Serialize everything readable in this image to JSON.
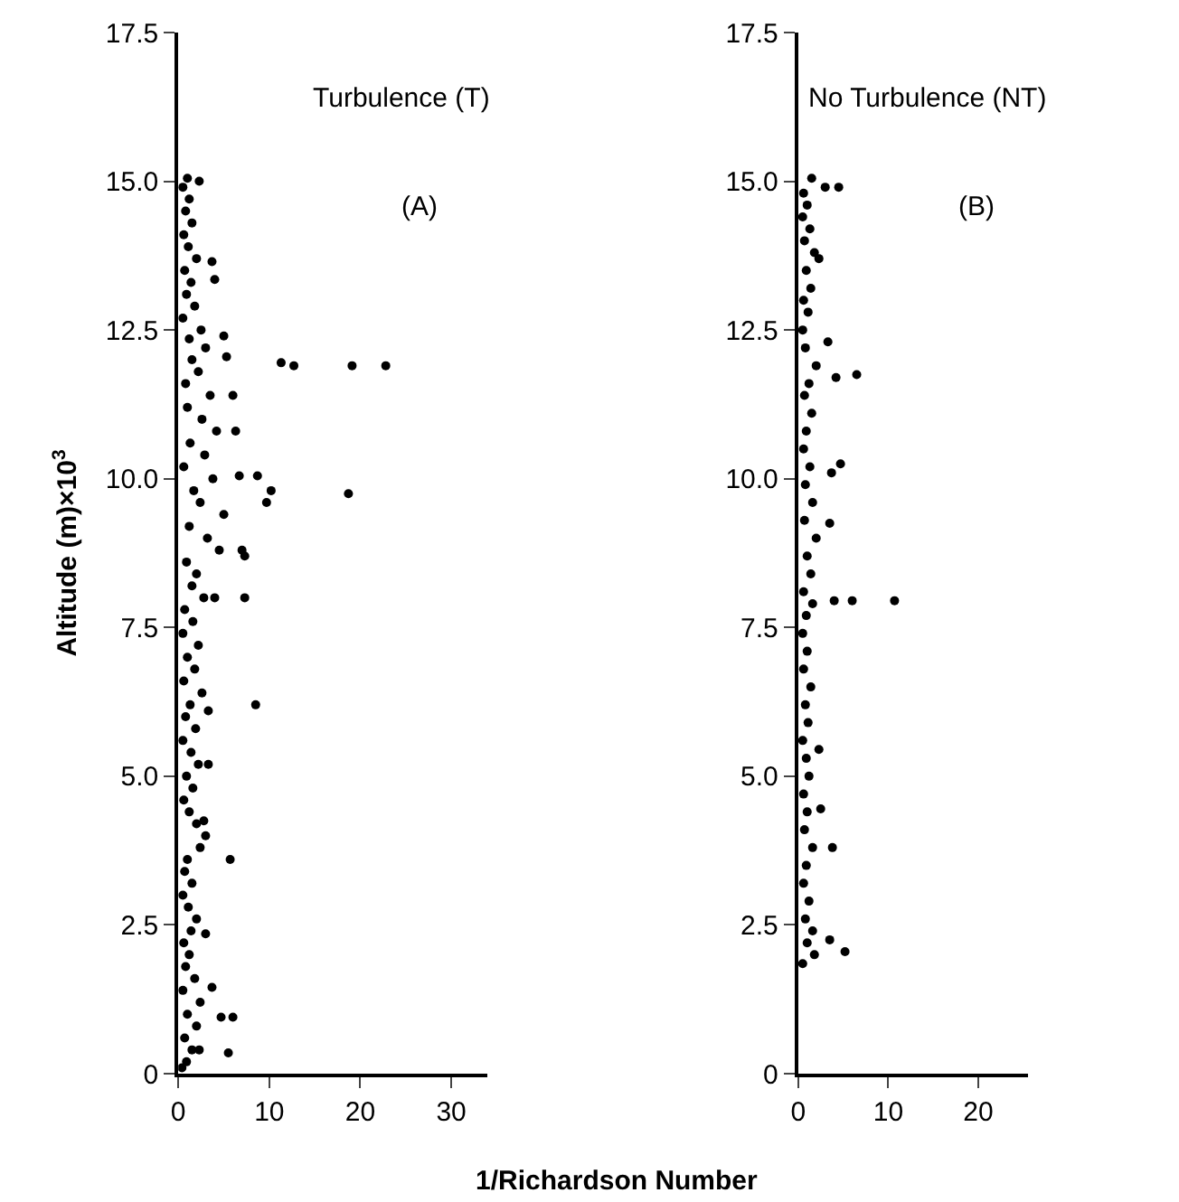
{
  "chart_data": [
    {
      "type": "scatter",
      "title": "Turbulence (T)",
      "annotations": [
        "(A)"
      ],
      "ylabel": "Altitude (m)×10$^{3}$",
      "xlabel": "1/Richardson Number",
      "xlim": [
        0,
        34
      ],
      "xticks": [
        0,
        10,
        20,
        30
      ],
      "ylim": [
        0,
        17.5
      ],
      "yticks": [
        0,
        2.5,
        {
          "value": 5,
          "label": "5.0"
        },
        7.5,
        {
          "value": 10,
          "label": "10.0"
        },
        12.5,
        {
          "value": 15,
          "label": "15.0"
        },
        17.5
      ],
      "marker": "circle",
      "series": [
        {
          "color": "#000000",
          "x": [
            1.0,
            0.5,
            1.2,
            0.8,
            1.5,
            0.6,
            1.1,
            2.0,
            0.7,
            1.4,
            0.9,
            1.8,
            0.5,
            2.5,
            1.2,
            3.0,
            1.5,
            2.2,
            0.8,
            3.5,
            1.0,
            2.6,
            4.2,
            1.3,
            2.9,
            0.6,
            3.8,
            1.7,
            2.4,
            5.0,
            1.2,
            3.2,
            4.5,
            0.9,
            2.0,
            1.5,
            2.8,
            0.7,
            1.6,
            0.5,
            2.2,
            1.0,
            1.8,
            0.6,
            2.6,
            1.3,
            0.8,
            1.9,
            0.5,
            1.4,
            2.2,
            0.9,
            1.6,
            0.6,
            1.2,
            2.0,
            3.0,
            2.4,
            1.0,
            0.7,
            1.5,
            0.5,
            1.1,
            2.0,
            1.4,
            0.6,
            1.2,
            0.8,
            1.8,
            0.5,
            2.4,
            1.0,
            2.0,
            0.7,
            1.5,
            0.9,
            0.4,
            11.3,
            12.7,
            19.1,
            22.8,
            18.7,
            10.2,
            9.7,
            8.7,
            6.7,
            7.0,
            5.3,
            6.3,
            6.0,
            5.0,
            7.3,
            4.0,
            8.5,
            5.7,
            3.3,
            3.3,
            2.8,
            6.0,
            4.7,
            5.5,
            3.7,
            2.3,
            3.0,
            2.3,
            3.7,
            4.0,
            7.3
          ],
          "values": [
            15.05,
            14.9,
            14.7,
            14.5,
            14.3,
            14.1,
            13.9,
            13.7,
            13.5,
            13.3,
            13.1,
            12.9,
            12.7,
            12.5,
            12.35,
            12.2,
            12.0,
            11.8,
            11.6,
            11.4,
            11.2,
            11.0,
            10.8,
            10.6,
            10.4,
            10.2,
            10.0,
            9.8,
            9.6,
            9.4,
            9.2,
            9.0,
            8.8,
            8.6,
            8.4,
            8.2,
            8.0,
            7.8,
            7.6,
            7.4,
            7.2,
            7.0,
            6.8,
            6.6,
            6.4,
            6.2,
            6.0,
            5.8,
            5.6,
            5.4,
            5.2,
            5.0,
            4.8,
            4.6,
            4.4,
            4.2,
            4.0,
            3.8,
            3.6,
            3.4,
            3.2,
            3.0,
            2.8,
            2.6,
            2.4,
            2.2,
            2.0,
            1.8,
            1.6,
            1.4,
            1.2,
            1.0,
            0.8,
            0.6,
            0.4,
            0.2,
            0.1,
            11.95,
            11.9,
            11.9,
            11.9,
            9.75,
            9.8,
            9.6,
            10.05,
            10.05,
            8.8,
            12.05,
            10.8,
            11.4,
            12.4,
            8.0,
            8.0,
            6.2,
            3.6,
            6.1,
            5.2,
            4.25,
            0.95,
            0.95,
            0.35,
            1.45,
            0.4,
            2.35,
            15.0,
            13.65,
            13.35,
            8.7
          ]
        }
      ]
    },
    {
      "type": "scatter",
      "title": "No Turbulence (NT)",
      "annotations": [
        "(B)"
      ],
      "xlim": [
        0,
        25.5
      ],
      "xticks": [
        0,
        10,
        20
      ],
      "ylim": [
        0,
        17.5
      ],
      "yticks": [
        0,
        2.5,
        {
          "value": 5,
          "label": "5.0"
        },
        7.5,
        {
          "value": 10,
          "label": "10.0"
        },
        12.5,
        {
          "value": 15,
          "label": "15.0"
        },
        17.5
      ],
      "marker": "circle",
      "series": [
        {
          "color": "#000000",
          "x": [
            1.5,
            0.6,
            1.0,
            0.5,
            1.3,
            0.7,
            1.8,
            0.9,
            1.4,
            0.6,
            1.1,
            0.5,
            0.8,
            2.0,
            1.2,
            0.7,
            1.5,
            0.9,
            0.6,
            1.3,
            0.8,
            1.6,
            0.7,
            2.0,
            1.0,
            1.4,
            0.6,
            0.9,
            0.5,
            1.0,
            0.6,
            1.4,
            0.8,
            1.1,
            0.5,
            0.9,
            1.2,
            0.6,
            1.0,
            0.7,
            1.6,
            0.9,
            0.6,
            1.2,
            0.8,
            1.6,
            1.0,
            1.8,
            0.5,
            10.7,
            6.0,
            4.0,
            1.6,
            5.2,
            3.5,
            3.8,
            2.5,
            2.3,
            4.5,
            3.0,
            6.5,
            4.2,
            3.3,
            4.7,
            3.7,
            3.5,
            2.3
          ],
          "values": [
            15.05,
            14.8,
            14.6,
            14.4,
            14.2,
            14.0,
            13.8,
            13.5,
            13.2,
            13.0,
            12.8,
            12.5,
            12.2,
            11.9,
            11.6,
            11.4,
            11.1,
            10.8,
            10.5,
            10.2,
            9.9,
            9.6,
            9.3,
            9.0,
            8.7,
            8.4,
            8.1,
            7.7,
            7.4,
            7.1,
            6.8,
            6.5,
            6.2,
            5.9,
            5.6,
            5.3,
            5.0,
            4.7,
            4.4,
            4.1,
            3.8,
            3.5,
            3.2,
            2.9,
            2.6,
            2.4,
            2.2,
            2.0,
            1.85,
            7.95,
            7.95,
            7.95,
            7.9,
            2.05,
            2.25,
            3.8,
            4.45,
            5.45,
            14.9,
            14.9,
            11.75,
            11.7,
            12.3,
            10.25,
            10.1,
            9.25,
            13.7
          ]
        }
      ]
    }
  ]
}
